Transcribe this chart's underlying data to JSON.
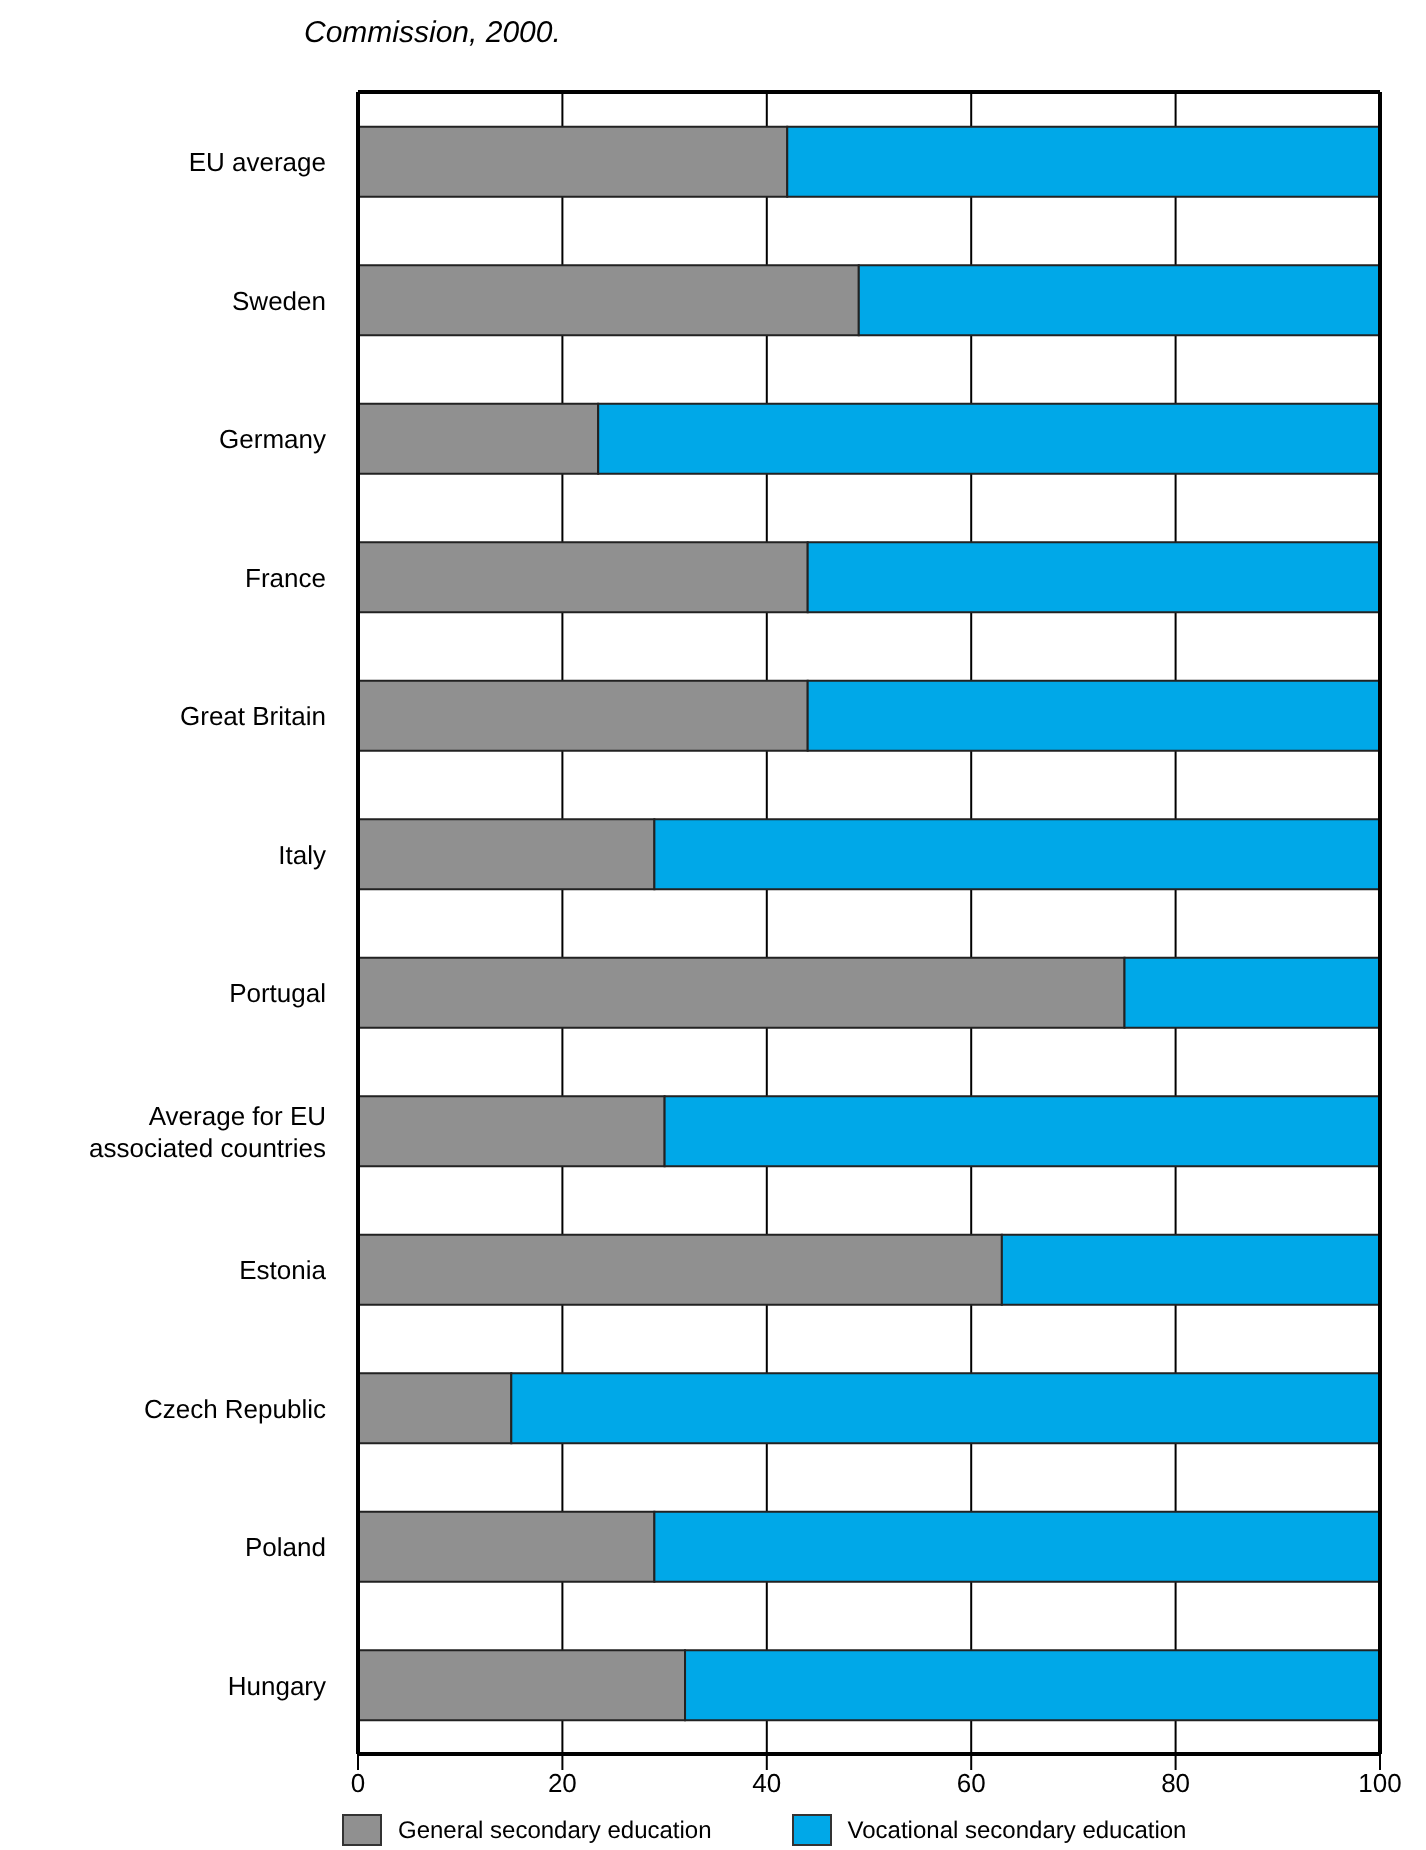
{
  "chart_data": {
    "type": "bar",
    "orientation": "horizontal",
    "stacked": true,
    "annotations": [
      "Commission, 2000."
    ],
    "categories": [
      "EU average",
      "Sweden",
      "Germany",
      "France",
      "Great Britain",
      "Italy",
      "Portugal",
      "Average for EU associated countries",
      "Estonia",
      "Czech Republic",
      "Poland",
      "Hungary"
    ],
    "series": [
      {
        "name": "General secondary education",
        "color": "#909090",
        "values": [
          42,
          49,
          23.5,
          44,
          44,
          29,
          75,
          30,
          63,
          15,
          29,
          32
        ]
      },
      {
        "name": "Vocational secondary education",
        "color": "#00a8e8",
        "values": [
          58,
          51,
          76.5,
          56,
          56,
          71,
          25,
          70,
          37,
          85,
          71,
          68
        ]
      }
    ],
    "xlim": [
      0,
      100
    ],
    "xticks": [
      0,
      20,
      40,
      60,
      80,
      100
    ],
    "grid": "x",
    "legend": "bottom"
  }
}
